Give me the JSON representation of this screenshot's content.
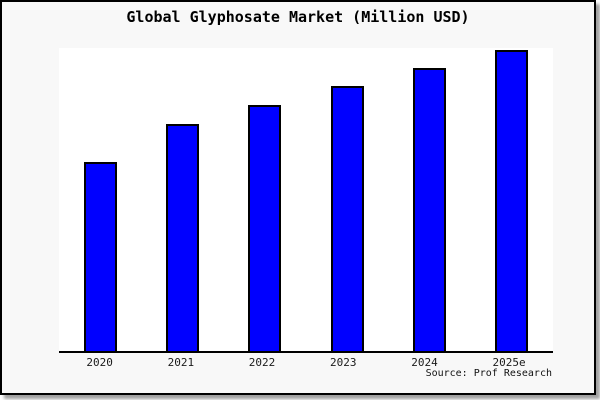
{
  "window": {
    "background_color": "#f8f8f8",
    "plot_background_color": "#ffffff",
    "border_color": "#000000"
  },
  "chart": {
    "title": "Global Glyphosate Market (Million USD)",
    "source": "Source: Prof Research"
  },
  "chart_data": {
    "type": "bar",
    "title": "Global Glyphosate Market (Million USD)",
    "categories": [
      "2020",
      "2021",
      "2022",
      "2023",
      "2024",
      "2025e"
    ],
    "values": [
      189,
      227,
      246,
      265,
      283,
      301
    ],
    "value_scale_note": "no y-axis shown; values are relative bar heights read from pixels",
    "xlabel": "",
    "ylabel": "",
    "ylim": [
      0,
      303
    ],
    "grid": false,
    "legend": false,
    "bar_color": "#0000ff",
    "bar_border_color": "#000000",
    "annotations": [
      "Source: Prof Research"
    ]
  }
}
